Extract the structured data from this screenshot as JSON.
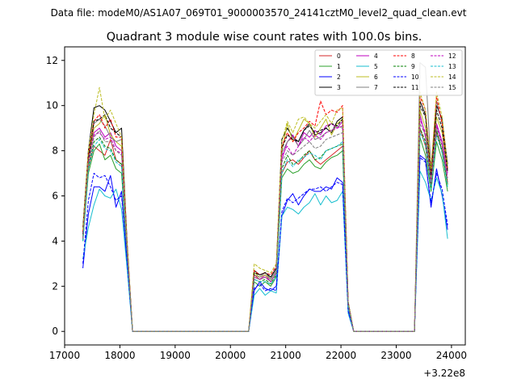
{
  "figure": {
    "suptitle": "Data file: modeM0/AS1A07_069T01_9000003570_24141cztM0_level2_quad_clean.evt",
    "title": "Quadrant 3 module wise count rates with 100.0s bins.",
    "x_offset_label": "+3.22e8"
  },
  "chart_data": {
    "type": "line",
    "title": "Quadrant 3 module wise count rates with 100.0s bins.",
    "xlabel": "",
    "ylabel": "",
    "x_offset": 322000000,
    "xlim": [
      17000,
      24250
    ],
    "ylim": [
      -0.6,
      12.6
    ],
    "xticks": [
      17000,
      18000,
      19000,
      20000,
      21000,
      22000,
      23000,
      24000
    ],
    "yticks": [
      0,
      2,
      4,
      6,
      8,
      10,
      12
    ],
    "xtick_labels": [
      "17000",
      "18000",
      "19000",
      "20000",
      "21000",
      "22000",
      "23000",
      "24000"
    ],
    "ytick_labels": [
      "0",
      "2",
      "4",
      "6",
      "8",
      "10",
      "12"
    ],
    "grid": false,
    "legend_position": "top-right",
    "x": [
      17330,
      17430,
      17530,
      17630,
      17730,
      17830,
      17930,
      18030,
      18130,
      18230,
      18330,
      18430,
      18530,
      18630,
      18730,
      18830,
      18930,
      19030,
      19130,
      19230,
      19330,
      19430,
      19530,
      19630,
      19730,
      19830,
      19930,
      20030,
      20130,
      20230,
      20330,
      20430,
      20530,
      20630,
      20730,
      20830,
      20930,
      21030,
      21130,
      21230,
      21330,
      21430,
      21530,
      21630,
      21730,
      21830,
      21930,
      22030,
      22130,
      22230,
      22330,
      22430,
      22530,
      22630,
      22730,
      22830,
      22930,
      23030,
      23130,
      23230,
      23330,
      23430,
      23530,
      23630,
      23730,
      23830,
      23930
    ],
    "series": [
      {
        "name": "0",
        "color": "#d62728",
        "dash": "solid",
        "values": [
          4.2,
          7.2,
          8.2,
          8.0,
          7.8,
          8.5,
          7.6,
          7.4,
          3.6,
          0,
          0,
          0,
          0,
          0,
          0,
          0,
          0,
          0,
          0,
          0,
          0,
          0,
          0,
          0,
          0,
          0,
          0,
          0,
          0,
          0,
          0,
          2.5,
          2.3,
          2.4,
          2.2,
          2.6,
          7.0,
          7.5,
          7.6,
          7.4,
          7.7,
          8.0,
          7.6,
          7.4,
          7.6,
          7.8,
          8.0,
          8.2,
          1.2,
          0,
          0,
          0,
          0,
          0,
          0,
          0,
          0,
          0,
          0,
          0,
          0,
          9.0,
          8.2,
          6.4,
          8.8,
          8.0,
          6.6
        ]
      },
      {
        "name": "1",
        "color": "#2ca02c",
        "dash": "solid",
        "values": [
          4.0,
          7.0,
          8.0,
          8.3,
          7.6,
          7.8,
          7.2,
          7.0,
          3.4,
          0,
          0,
          0,
          0,
          0,
          0,
          0,
          0,
          0,
          0,
          0,
          0,
          0,
          0,
          0,
          0,
          0,
          0,
          0,
          0,
          0,
          0,
          2.2,
          2.0,
          2.2,
          2.0,
          2.4,
          6.8,
          7.2,
          7.0,
          7.1,
          7.4,
          7.6,
          7.3,
          7.2,
          7.5,
          7.7,
          7.8,
          8.0,
          1.1,
          0,
          0,
          0,
          0,
          0,
          0,
          0,
          0,
          0,
          0,
          0,
          0,
          8.6,
          7.8,
          6.2,
          8.4,
          7.6,
          6.2
        ]
      },
      {
        "name": "2",
        "color": "#0000ff",
        "dash": "solid",
        "values": [
          2.8,
          5.2,
          6.4,
          6.4,
          6.2,
          6.9,
          5.5,
          6.2,
          3.0,
          0,
          0,
          0,
          0,
          0,
          0,
          0,
          0,
          0,
          0,
          0,
          0,
          0,
          0,
          0,
          0,
          0,
          0,
          0,
          0,
          0,
          0,
          1.8,
          2.2,
          1.9,
          1.8,
          2.0,
          5.1,
          5.8,
          6.1,
          5.6,
          6.0,
          6.3,
          6.2,
          6.2,
          6.4,
          6.3,
          6.8,
          6.6,
          0.9,
          0,
          0,
          0,
          0,
          0,
          0,
          0,
          0,
          0,
          0,
          0,
          0,
          7.8,
          7.6,
          5.5,
          7.2,
          6.0,
          4.5
        ]
      },
      {
        "name": "3",
        "color": "#000000",
        "dash": "solid",
        "values": [
          4.6,
          8.0,
          9.9,
          10.0,
          9.8,
          9.3,
          8.8,
          9.0,
          4.0,
          0,
          0,
          0,
          0,
          0,
          0,
          0,
          0,
          0,
          0,
          0,
          0,
          0,
          0,
          0,
          0,
          0,
          0,
          0,
          0,
          0,
          0,
          2.7,
          2.5,
          2.6,
          2.4,
          2.8,
          8.5,
          9.0,
          8.6,
          8.4,
          8.9,
          9.2,
          8.7,
          8.8,
          9.0,
          8.8,
          9.3,
          9.5,
          1.3,
          0,
          0,
          0,
          0,
          0,
          0,
          0,
          0,
          0,
          0,
          0,
          0,
          10.2,
          9.6,
          7.0,
          10.0,
          9.4,
          7.4
        ]
      },
      {
        "name": "4",
        "color": "#bf00bf",
        "dash": "solid",
        "values": [
          4.1,
          7.6,
          8.8,
          9.0,
          8.6,
          8.8,
          8.2,
          8.0,
          3.8,
          0,
          0,
          0,
          0,
          0,
          0,
          0,
          0,
          0,
          0,
          0,
          0,
          0,
          0,
          0,
          0,
          0,
          0,
          0,
          0,
          0,
          0,
          2.4,
          2.3,
          2.5,
          2.2,
          2.6,
          7.6,
          8.4,
          8.7,
          8.2,
          8.8,
          8.6,
          8.9,
          8.7,
          9.1,
          9.2,
          9.0,
          9.3,
          1.2,
          0,
          0,
          0,
          0,
          0,
          0,
          0,
          0,
          0,
          0,
          0,
          0,
          9.6,
          8.6,
          6.7,
          9.2,
          8.4,
          7.0
        ]
      },
      {
        "name": "5",
        "color": "#17becf",
        "dash": "solid",
        "values": [
          3.2,
          4.6,
          5.6,
          6.3,
          6.0,
          5.9,
          6.3,
          5.4,
          2.8,
          0,
          0,
          0,
          0,
          0,
          0,
          0,
          0,
          0,
          0,
          0,
          0,
          0,
          0,
          0,
          0,
          0,
          0,
          0,
          0,
          0,
          0,
          1.6,
          1.9,
          1.6,
          1.8,
          1.7,
          5.1,
          5.5,
          5.4,
          5.2,
          5.5,
          5.7,
          6.1,
          5.6,
          6.0,
          5.7,
          5.8,
          6.2,
          0.8,
          0,
          0,
          0,
          0,
          0,
          0,
          0,
          0,
          0,
          0,
          0,
          0,
          7.1,
          6.6,
          5.8,
          6.8,
          6.1,
          4.1
        ]
      },
      {
        "name": "6",
        "color": "#bcbd22",
        "dash": "solid",
        "values": [
          4.2,
          7.6,
          9.0,
          9.2,
          9.6,
          8.7,
          8.4,
          8.2,
          3.7,
          0,
          0,
          0,
          0,
          0,
          0,
          0,
          0,
          0,
          0,
          0,
          0,
          0,
          0,
          0,
          0,
          0,
          0,
          0,
          0,
          0,
          0,
          2.6,
          2.4,
          2.5,
          2.3,
          2.7,
          8.0,
          9.2,
          8.4,
          8.9,
          9.4,
          9.2,
          8.6,
          9.0,
          9.4,
          8.7,
          9.2,
          9.4,
          1.2,
          0,
          0,
          0,
          0,
          0,
          0,
          0,
          0,
          0,
          0,
          0,
          0,
          9.8,
          9.0,
          6.8,
          9.5,
          8.8,
          7.1
        ]
      },
      {
        "name": "7",
        "color": "#7f7f7f",
        "dash": "solid",
        "values": [
          4.3,
          7.7,
          9.2,
          9.4,
          9.1,
          8.6,
          8.4,
          8.5,
          3.9,
          0,
          0,
          0,
          0,
          0,
          0,
          0,
          0,
          0,
          0,
          0,
          0,
          0,
          0,
          0,
          0,
          0,
          0,
          0,
          0,
          0,
          0,
          2.5,
          2.4,
          2.6,
          2.3,
          2.7,
          7.9,
          8.4,
          8.6,
          8.2,
          8.5,
          8.9,
          8.5,
          8.6,
          8.8,
          8.9,
          9.1,
          9.0,
          1.2,
          0,
          0,
          0,
          0,
          0,
          0,
          0,
          0,
          0,
          0,
          0,
          0,
          11.9,
          11.7,
          7.2,
          10.2,
          9.2,
          7.2
        ]
      },
      {
        "name": "8",
        "color": "#ff0000",
        "dash": "dashed",
        "values": [
          4.4,
          7.8,
          9.3,
          9.6,
          9.0,
          9.4,
          8.6,
          8.6,
          3.9,
          0,
          0,
          0,
          0,
          0,
          0,
          0,
          0,
          0,
          0,
          0,
          0,
          0,
          0,
          0,
          0,
          0,
          0,
          0,
          0,
          0,
          0,
          2.7,
          2.5,
          2.6,
          2.5,
          2.9,
          8.2,
          8.8,
          8.4,
          8.8,
          9.0,
          9.3,
          9.1,
          10.2,
          9.6,
          9.8,
          9.7,
          10.0,
          1.3,
          0,
          0,
          0,
          0,
          0,
          0,
          0,
          0,
          0,
          0,
          0,
          0,
          10.4,
          9.8,
          7.1,
          10.4,
          9.2,
          7.2
        ]
      },
      {
        "name": "9",
        "color": "#008000",
        "dash": "dashed",
        "values": [
          4.0,
          7.3,
          8.4,
          8.6,
          8.2,
          8.1,
          7.6,
          7.4,
          3.5,
          0,
          0,
          0,
          0,
          0,
          0,
          0,
          0,
          0,
          0,
          0,
          0,
          0,
          0,
          0,
          0,
          0,
          0,
          0,
          0,
          0,
          0,
          2.3,
          2.2,
          2.3,
          2.1,
          2.5,
          7.2,
          7.8,
          7.4,
          7.5,
          7.8,
          8.0,
          7.6,
          7.7,
          8.0,
          8.1,
          8.2,
          8.3,
          1.1,
          0,
          0,
          0,
          0,
          0,
          0,
          0,
          0,
          0,
          0,
          0,
          0,
          9.0,
          8.4,
          6.4,
          8.9,
          8.0,
          6.5
        ]
      },
      {
        "name": "10",
        "color": "#0000ff",
        "dash": "dashed",
        "values": [
          3.0,
          5.8,
          7.0,
          6.8,
          6.9,
          6.4,
          5.8,
          6.0,
          3.1,
          0,
          0,
          0,
          0,
          0,
          0,
          0,
          0,
          0,
          0,
          0,
          0,
          0,
          0,
          0,
          0,
          0,
          0,
          0,
          0,
          0,
          0,
          1.9,
          2.1,
          1.8,
          1.9,
          1.8,
          5.3,
          5.9,
          5.7,
          5.9,
          6.1,
          6.3,
          6.3,
          6.4,
          6.2,
          6.4,
          6.6,
          6.5,
          0.9,
          0,
          0,
          0,
          0,
          0,
          0,
          0,
          0,
          0,
          0,
          0,
          0,
          7.7,
          7.5,
          5.7,
          7.0,
          6.3,
          4.7
        ]
      },
      {
        "name": "11",
        "color": "#000000",
        "dash": "dashed",
        "values": [
          4.3,
          7.6,
          9.3,
          9.4,
          9.6,
          9.0,
          8.8,
          8.6,
          3.8,
          0,
          0,
          0,
          0,
          0,
          0,
          0,
          0,
          0,
          0,
          0,
          0,
          0,
          0,
          0,
          0,
          0,
          0,
          0,
          0,
          0,
          0,
          2.6,
          2.5,
          2.6,
          2.4,
          2.8,
          8.1,
          8.7,
          8.5,
          8.4,
          8.9,
          9.1,
          8.8,
          8.9,
          9.0,
          9.2,
          9.1,
          9.4,
          1.3,
          0,
          0,
          0,
          0,
          0,
          0,
          0,
          0,
          0,
          0,
          0,
          0,
          10.0,
          9.5,
          6.9,
          9.8,
          9.0,
          7.1
        ]
      },
      {
        "name": "12",
        "color": "#bf00bf",
        "dash": "dashed",
        "values": [
          4.1,
          7.5,
          8.7,
          8.8,
          8.5,
          8.6,
          8.0,
          7.9,
          3.7,
          0,
          0,
          0,
          0,
          0,
          0,
          0,
          0,
          0,
          0,
          0,
          0,
          0,
          0,
          0,
          0,
          0,
          0,
          0,
          0,
          0,
          0,
          2.4,
          2.3,
          2.4,
          2.2,
          2.6,
          7.8,
          8.2,
          7.8,
          8.2,
          8.6,
          8.4,
          8.7,
          8.5,
          8.8,
          8.9,
          9.0,
          9.1,
          1.2,
          0,
          0,
          0,
          0,
          0,
          0,
          0,
          0,
          0,
          0,
          0,
          0,
          9.4,
          8.8,
          6.6,
          9.1,
          8.3,
          6.8
        ]
      },
      {
        "name": "13",
        "color": "#17becf",
        "dash": "dashed",
        "values": [
          4.0,
          7.2,
          8.2,
          8.5,
          8.1,
          8.0,
          7.5,
          7.3,
          3.5,
          0,
          0,
          0,
          0,
          0,
          0,
          0,
          0,
          0,
          0,
          0,
          0,
          0,
          0,
          0,
          0,
          0,
          0,
          0,
          0,
          0,
          0,
          2.3,
          2.2,
          2.2,
          2.1,
          2.4,
          7.0,
          7.6,
          7.3,
          7.6,
          7.7,
          7.9,
          7.8,
          7.6,
          8.0,
          8.1,
          8.2,
          8.4,
          1.1,
          0,
          0,
          0,
          0,
          0,
          0,
          0,
          0,
          0,
          0,
          0,
          0,
          8.8,
          8.3,
          6.3,
          8.7,
          7.9,
          6.4
        ]
      },
      {
        "name": "14",
        "color": "#bcbd22",
        "dash": "dashed",
        "values": [
          4.5,
          8.0,
          9.6,
          10.8,
          9.4,
          9.8,
          9.2,
          8.6,
          3.9,
          0,
          0,
          0,
          0,
          0,
          0,
          0,
          0,
          0,
          0,
          0,
          0,
          0,
          0,
          0,
          0,
          0,
          0,
          0,
          0,
          0,
          0,
          3.0,
          2.8,
          2.7,
          2.6,
          3.0,
          8.4,
          9.3,
          8.8,
          9.4,
          9.5,
          9.2,
          9.0,
          9.3,
          9.6,
          9.2,
          9.8,
          9.9,
          1.3,
          0,
          0,
          0,
          0,
          0,
          0,
          0,
          0,
          0,
          0,
          0,
          0,
          10.6,
          9.8,
          7.2,
          10.6,
          9.5,
          7.3
        ]
      },
      {
        "name": "15",
        "color": "#7f7f7f",
        "dash": "dashed",
        "values": [
          4.1,
          7.4,
          8.6,
          8.9,
          8.4,
          8.4,
          8.0,
          7.8,
          3.6,
          0,
          0,
          0,
          0,
          0,
          0,
          0,
          0,
          0,
          0,
          0,
          0,
          0,
          0,
          0,
          0,
          0,
          0,
          0,
          0,
          0,
          0,
          2.4,
          2.3,
          2.4,
          2.2,
          2.6,
          7.5,
          8.0,
          7.8,
          8.0,
          8.2,
          8.4,
          8.1,
          8.2,
          8.5,
          8.6,
          8.7,
          8.8,
          1.2,
          0,
          0,
          0,
          0,
          0,
          0,
          0,
          0,
          0,
          0,
          0,
          0,
          9.2,
          8.7,
          6.5,
          9.0,
          8.2,
          6.7
        ]
      }
    ]
  }
}
